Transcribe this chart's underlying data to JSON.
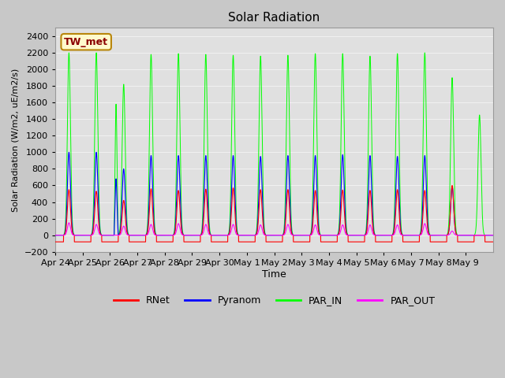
{
  "title": "Solar Radiation",
  "ylabel": "Solar Radiation (W/m2, uE/m2/s)",
  "xlabel": "Time",
  "ylim": [
    -200,
    2500
  ],
  "yticks": [
    -200,
    0,
    200,
    400,
    600,
    800,
    1000,
    1200,
    1400,
    1600,
    1800,
    2000,
    2200,
    2400
  ],
  "annotation_label": "TW_met",
  "annotation_color_bg": "#FFFACD",
  "annotation_color_border": "#B8860B",
  "annotation_text_color": "#8B0000",
  "legend_labels": [
    "RNet",
    "Pyranom",
    "PAR_IN",
    "PAR_OUT"
  ],
  "line_colors": {
    "RNet": "red",
    "Pyranom": "blue",
    "PAR_IN": "#00FF00",
    "PAR_OUT": "magenta"
  },
  "fig_bg_color": "#c8c8c8",
  "plot_bg_color": "#e0e0e0",
  "n_days": 16,
  "x_tick_labels": [
    "Apr 24",
    "Apr 25",
    "Apr 26",
    "Apr 27",
    "Apr 28",
    "Apr 29",
    "Apr 30",
    "May 1",
    "May 2",
    "May 3",
    "May 4",
    "May 5",
    "May 6",
    "May 7",
    "May 8",
    "May 9"
  ],
  "grid_color": "#f0f0f0",
  "grid_linewidth": 0.8,
  "rnet_peaks": [
    550,
    530,
    420,
    560,
    540,
    555,
    570,
    550,
    550,
    540,
    545,
    540,
    550,
    540,
    600,
    0
  ],
  "pyran_peaks": [
    1000,
    1000,
    800,
    960,
    960,
    960,
    960,
    950,
    960,
    960,
    970,
    960,
    950,
    960,
    590,
    0
  ],
  "par_in_peaks": [
    2200,
    2200,
    1820,
    2180,
    2190,
    2180,
    2170,
    2160,
    2170,
    2190,
    2190,
    2160,
    2190,
    2200,
    1900,
    1450
  ],
  "par_out_peaks": [
    150,
    130,
    110,
    130,
    140,
    130,
    130,
    125,
    130,
    125,
    125,
    125,
    125,
    140,
    50,
    0
  ],
  "night_rnet": -80,
  "peak_sigma": 0.055,
  "day_start": 0.3,
  "day_end": 0.7
}
